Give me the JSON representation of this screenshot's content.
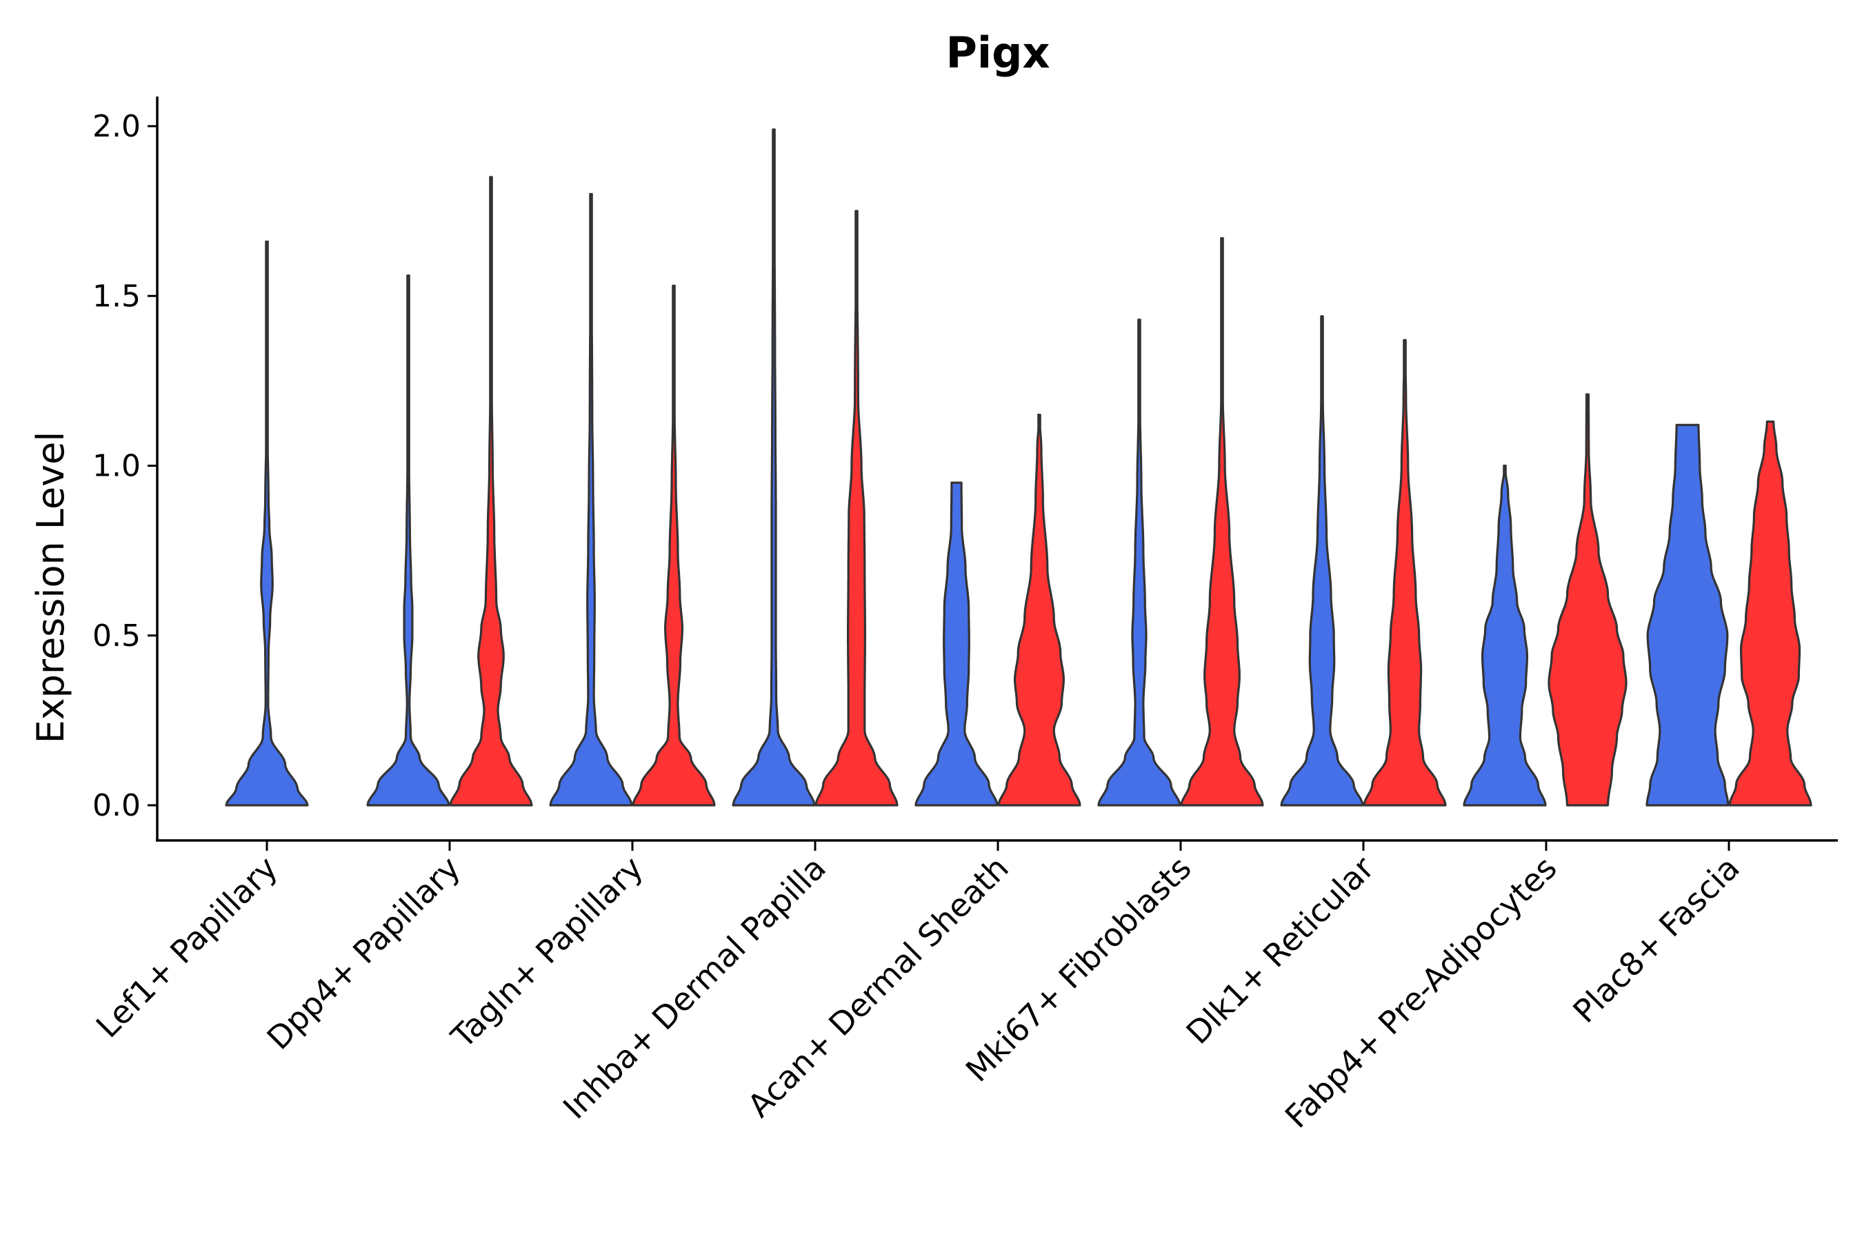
{
  "chart_data": {
    "type": "violin",
    "title": "Pigx",
    "xlabel": "",
    "ylabel": "Expression Level",
    "ylim": [
      -0.1,
      2.08
    ],
    "yticks": [
      "0.0",
      "0.5",
      "1.0",
      "1.5",
      "2.0"
    ],
    "grid": false,
    "legend": "none",
    "colors": {
      "group1": "#4570E8",
      "group2": "#FF3333",
      "outline": "#333333"
    },
    "categories": [
      "Lef1+ Papillary",
      "Dpp4+ Papillary",
      "Tagln+ Papillary",
      "Inhba+ Dermal Papilla",
      "Acan+ Dermal Sheath",
      "Mki67+ Fibroblasts",
      "Dlk1+ Reticular",
      "Fabp4+ Pre-Adipocytes",
      "Plac8+ Fascia"
    ],
    "violins": [
      {
        "category": 0,
        "group": 1,
        "min": 0.0,
        "max": 1.66,
        "flat_top": false,
        "profile": [
          [
            0,
            1.0
          ],
          [
            0.05,
            0.75
          ],
          [
            0.12,
            0.45
          ],
          [
            0.2,
            0.1
          ],
          [
            0.3,
            0.03
          ],
          [
            0.45,
            0.04
          ],
          [
            0.55,
            0.08
          ],
          [
            0.65,
            0.14
          ],
          [
            0.73,
            0.12
          ],
          [
            0.82,
            0.06
          ],
          [
            0.9,
            0.04
          ],
          [
            1.1,
            0.015
          ],
          [
            1.66,
            0.0
          ]
        ]
      },
      {
        "category": 1,
        "group": 1,
        "min": 0.0,
        "max": 1.56,
        "flat_top": false,
        "profile": [
          [
            0,
            1.0
          ],
          [
            0.06,
            0.75
          ],
          [
            0.14,
            0.28
          ],
          [
            0.2,
            0.06
          ],
          [
            0.3,
            0.03
          ],
          [
            0.4,
            0.06
          ],
          [
            0.5,
            0.1
          ],
          [
            0.58,
            0.1
          ],
          [
            0.66,
            0.07
          ],
          [
            0.8,
            0.04
          ],
          [
            1.0,
            0.02
          ],
          [
            1.56,
            0.0
          ]
        ]
      },
      {
        "category": 1,
        "group": 2,
        "min": 0.0,
        "max": 1.85,
        "flat_top": false,
        "profile": [
          [
            0,
            1.0
          ],
          [
            0.06,
            0.78
          ],
          [
            0.14,
            0.45
          ],
          [
            0.2,
            0.24
          ],
          [
            0.28,
            0.17
          ],
          [
            0.35,
            0.24
          ],
          [
            0.44,
            0.31
          ],
          [
            0.52,
            0.24
          ],
          [
            0.6,
            0.13
          ],
          [
            0.8,
            0.08
          ],
          [
            1.0,
            0.04
          ],
          [
            1.2,
            0.02
          ],
          [
            1.85,
            0.0
          ]
        ]
      },
      {
        "category": 2,
        "group": 1,
        "min": 0.0,
        "max": 1.8,
        "flat_top": false,
        "profile": [
          [
            0,
            1.0
          ],
          [
            0.06,
            0.78
          ],
          [
            0.14,
            0.4
          ],
          [
            0.22,
            0.12
          ],
          [
            0.32,
            0.07
          ],
          [
            0.45,
            0.08
          ],
          [
            0.6,
            0.09
          ],
          [
            0.75,
            0.07
          ],
          [
            0.95,
            0.05
          ],
          [
            1.15,
            0.03
          ],
          [
            1.8,
            0.0
          ]
        ]
      },
      {
        "category": 2,
        "group": 2,
        "min": 0.0,
        "max": 1.53,
        "flat_top": false,
        "profile": [
          [
            0,
            1.0
          ],
          [
            0.06,
            0.8
          ],
          [
            0.14,
            0.42
          ],
          [
            0.2,
            0.14
          ],
          [
            0.3,
            0.1
          ],
          [
            0.42,
            0.16
          ],
          [
            0.52,
            0.21
          ],
          [
            0.62,
            0.15
          ],
          [
            0.75,
            0.1
          ],
          [
            0.95,
            0.05
          ],
          [
            1.15,
            0.02
          ],
          [
            1.53,
            0.0
          ]
        ]
      },
      {
        "category": 3,
        "group": 1,
        "min": 0.0,
        "max": 1.99,
        "flat_top": false,
        "profile": [
          [
            0,
            1.0
          ],
          [
            0.06,
            0.8
          ],
          [
            0.14,
            0.38
          ],
          [
            0.22,
            0.1
          ],
          [
            0.32,
            0.06
          ],
          [
            0.5,
            0.05
          ],
          [
            0.7,
            0.05
          ],
          [
            0.9,
            0.05
          ],
          [
            1.1,
            0.04
          ],
          [
            1.35,
            0.03
          ],
          [
            1.99,
            0.0
          ]
        ]
      },
      {
        "category": 3,
        "group": 2,
        "min": 0.0,
        "max": 1.75,
        "flat_top": false,
        "profile": [
          [
            0,
            1.0
          ],
          [
            0.06,
            0.82
          ],
          [
            0.14,
            0.45
          ],
          [
            0.22,
            0.2
          ],
          [
            0.32,
            0.2
          ],
          [
            0.5,
            0.21
          ],
          [
            0.7,
            0.2
          ],
          [
            0.85,
            0.19
          ],
          [
            1.0,
            0.12
          ],
          [
            1.2,
            0.04
          ],
          [
            1.75,
            0.0
          ]
        ]
      },
      {
        "category": 4,
        "group": 1,
        "min": 0.0,
        "max": 0.95,
        "flat_top": true,
        "profile": [
          [
            0,
            1.0
          ],
          [
            0.06,
            0.8
          ],
          [
            0.14,
            0.45
          ],
          [
            0.22,
            0.2
          ],
          [
            0.3,
            0.26
          ],
          [
            0.4,
            0.3
          ],
          [
            0.48,
            0.31
          ],
          [
            0.58,
            0.3
          ],
          [
            0.7,
            0.22
          ],
          [
            0.82,
            0.13
          ],
          [
            0.95,
            0.12
          ]
        ]
      },
      {
        "category": 4,
        "group": 2,
        "min": 0.0,
        "max": 1.15,
        "flat_top": false,
        "profile": [
          [
            0,
            1.0
          ],
          [
            0.06,
            0.8
          ],
          [
            0.14,
            0.5
          ],
          [
            0.22,
            0.36
          ],
          [
            0.3,
            0.55
          ],
          [
            0.37,
            0.6
          ],
          [
            0.45,
            0.52
          ],
          [
            0.55,
            0.36
          ],
          [
            0.7,
            0.2
          ],
          [
            0.9,
            0.09
          ],
          [
            1.05,
            0.05
          ],
          [
            1.15,
            0.0
          ]
        ]
      },
      {
        "category": 5,
        "group": 1,
        "min": 0.0,
        "max": 1.43,
        "flat_top": false,
        "profile": [
          [
            0,
            1.0
          ],
          [
            0.06,
            0.78
          ],
          [
            0.14,
            0.35
          ],
          [
            0.2,
            0.12
          ],
          [
            0.3,
            0.1
          ],
          [
            0.42,
            0.15
          ],
          [
            0.5,
            0.17
          ],
          [
            0.6,
            0.14
          ],
          [
            0.75,
            0.1
          ],
          [
            0.95,
            0.05
          ],
          [
            1.15,
            0.02
          ],
          [
            1.43,
            0.0
          ]
        ]
      },
      {
        "category": 5,
        "group": 2,
        "min": 0.0,
        "max": 1.67,
        "flat_top": false,
        "profile": [
          [
            0,
            1.0
          ],
          [
            0.06,
            0.8
          ],
          [
            0.14,
            0.45
          ],
          [
            0.22,
            0.3
          ],
          [
            0.3,
            0.38
          ],
          [
            0.38,
            0.43
          ],
          [
            0.48,
            0.38
          ],
          [
            0.6,
            0.3
          ],
          [
            0.8,
            0.18
          ],
          [
            1.0,
            0.07
          ],
          [
            1.2,
            0.02
          ],
          [
            1.67,
            0.0
          ]
        ]
      },
      {
        "category": 6,
        "group": 1,
        "min": 0.0,
        "max": 1.44,
        "flat_top": false,
        "profile": [
          [
            0,
            1.0
          ],
          [
            0.06,
            0.78
          ],
          [
            0.14,
            0.38
          ],
          [
            0.22,
            0.2
          ],
          [
            0.32,
            0.25
          ],
          [
            0.42,
            0.3
          ],
          [
            0.5,
            0.29
          ],
          [
            0.62,
            0.22
          ],
          [
            0.8,
            0.11
          ],
          [
            1.0,
            0.06
          ],
          [
            1.2,
            0.02
          ],
          [
            1.44,
            0.0
          ]
        ]
      },
      {
        "category": 6,
        "group": 2,
        "min": 0.0,
        "max": 1.37,
        "flat_top": false,
        "profile": [
          [
            0,
            1.0
          ],
          [
            0.06,
            0.8
          ],
          [
            0.14,
            0.45
          ],
          [
            0.22,
            0.35
          ],
          [
            0.3,
            0.38
          ],
          [
            0.4,
            0.4
          ],
          [
            0.5,
            0.35
          ],
          [
            0.62,
            0.27
          ],
          [
            0.8,
            0.18
          ],
          [
            1.0,
            0.08
          ],
          [
            1.2,
            0.03
          ],
          [
            1.37,
            0.0
          ]
        ]
      },
      {
        "category": 7,
        "group": 1,
        "min": 0.0,
        "max": 1.0,
        "flat_top": false,
        "profile": [
          [
            0,
            1.0
          ],
          [
            0.06,
            0.82
          ],
          [
            0.14,
            0.5
          ],
          [
            0.2,
            0.38
          ],
          [
            0.28,
            0.42
          ],
          [
            0.36,
            0.52
          ],
          [
            0.44,
            0.55
          ],
          [
            0.52,
            0.48
          ],
          [
            0.6,
            0.3
          ],
          [
            0.7,
            0.2
          ],
          [
            0.82,
            0.15
          ],
          [
            0.92,
            0.08
          ],
          [
            1.0,
            0.0
          ]
        ]
      },
      {
        "category": 7,
        "group": 2,
        "min": 0.0,
        "max": 1.21,
        "flat_top": true,
        "profile": [
          [
            0,
            0.5
          ],
          [
            0.1,
            0.6
          ],
          [
            0.2,
            0.72
          ],
          [
            0.28,
            0.85
          ],
          [
            0.36,
            0.95
          ],
          [
            0.44,
            0.88
          ],
          [
            0.52,
            0.72
          ],
          [
            0.62,
            0.5
          ],
          [
            0.75,
            0.27
          ],
          [
            0.9,
            0.08
          ],
          [
            1.05,
            0.03
          ],
          [
            1.21,
            0.025
          ]
        ]
      },
      {
        "category": 8,
        "group": 1,
        "min": 0.0,
        "max": 1.12,
        "flat_top": true,
        "profile": [
          [
            0,
            1.0
          ],
          [
            0.06,
            0.92
          ],
          [
            0.14,
            0.74
          ],
          [
            0.22,
            0.68
          ],
          [
            0.3,
            0.76
          ],
          [
            0.4,
            0.92
          ],
          [
            0.5,
            0.98
          ],
          [
            0.6,
            0.82
          ],
          [
            0.7,
            0.58
          ],
          [
            0.8,
            0.44
          ],
          [
            0.9,
            0.36
          ],
          [
            1.0,
            0.3
          ],
          [
            1.12,
            0.27
          ]
        ]
      },
      {
        "category": 8,
        "group": 2,
        "min": 0.0,
        "max": 1.13,
        "flat_top": true,
        "profile": [
          [
            0,
            1.0
          ],
          [
            0.06,
            0.84
          ],
          [
            0.14,
            0.5
          ],
          [
            0.22,
            0.42
          ],
          [
            0.3,
            0.54
          ],
          [
            0.38,
            0.7
          ],
          [
            0.46,
            0.72
          ],
          [
            0.55,
            0.6
          ],
          [
            0.65,
            0.52
          ],
          [
            0.75,
            0.46
          ],
          [
            0.85,
            0.4
          ],
          [
            0.95,
            0.3
          ],
          [
            1.05,
            0.15
          ],
          [
            1.13,
            0.08
          ]
        ]
      }
    ]
  }
}
